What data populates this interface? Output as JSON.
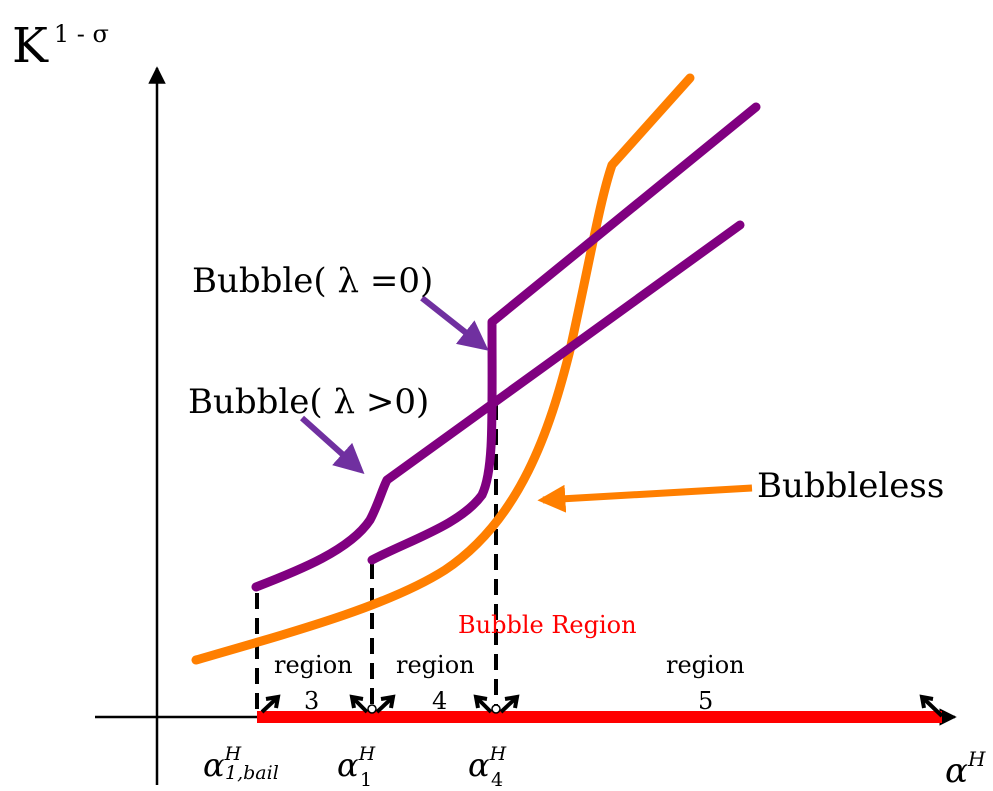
{
  "axes": {
    "y_label_base": "K",
    "y_label_exponent": "1 - σ",
    "x_label_base": "α",
    "x_label_superscript": "H"
  },
  "curves": {
    "bubble_lambda_zero": "Bubble( λ =0)",
    "bubble_lambda_positive": "Bubble( λ >0)",
    "bubbleless": "Bubbleless"
  },
  "bubble_region_label": "Bubble Region",
  "regions": [
    {
      "word": "region",
      "number": "3"
    },
    {
      "word": "region",
      "number": "4"
    },
    {
      "word": "region",
      "number": "5"
    }
  ],
  "ticks": [
    {
      "base": "α",
      "superscript": "H",
      "subscript": "1,bail"
    },
    {
      "base": "α",
      "superscript": "H",
      "subscript": "1"
    },
    {
      "base": "α",
      "superscript": "H",
      "subscript": "4"
    }
  ],
  "colors": {
    "purple_curve": "#800080",
    "orange_curve": "#FF7F00",
    "bubble_region": "#FF0000",
    "label_arrow_purple": "#7030A0",
    "axis": "#000000"
  }
}
